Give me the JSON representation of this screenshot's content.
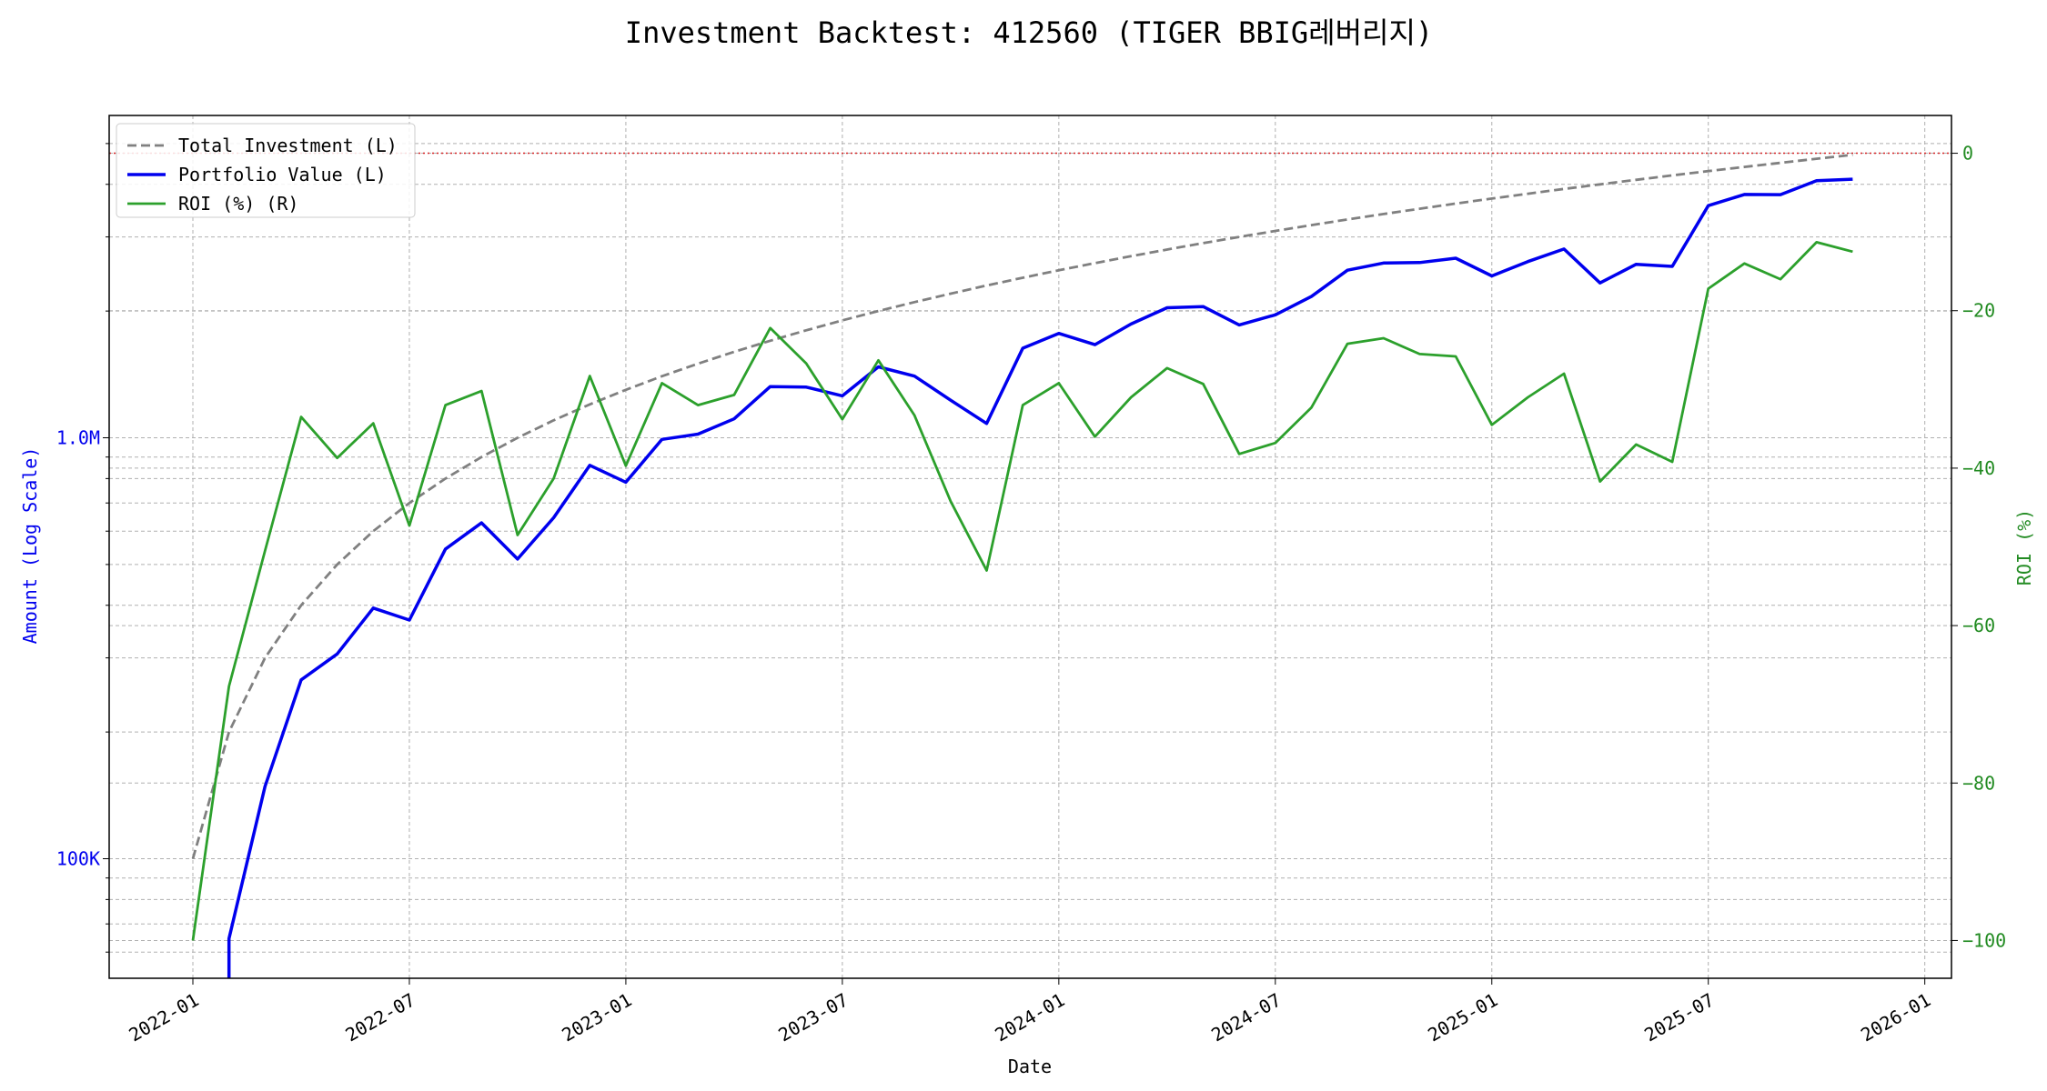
{
  "chart_data": {
    "type": "line",
    "title": "Investment Backtest: 412560 (TIGER BBIG레버리지)",
    "xlabel": "Date",
    "ylabel_left": "Amount (Log Scale)",
    "ylabel_right": "ROI (%)",
    "yscale_left": "log",
    "ylim_left": [
      52000,
      5830000
    ],
    "ylim_right": [
      -104.8,
      4.8
    ],
    "grid": true,
    "legend_placement": "top-left",
    "x_ticks": [
      "2022-01",
      "2022-07",
      "2023-01",
      "2023-07",
      "2024-01",
      "2024-07",
      "2025-01",
      "2025-07",
      "2026-01"
    ],
    "y_left_ticks": [
      {
        "value": 100000,
        "label": "100K"
      },
      {
        "value": 1000000,
        "label": "1.0M"
      }
    ],
    "y_right_ticks": [
      {
        "value": 0,
        "label": "0"
      },
      {
        "value": -20,
        "label": "−20"
      },
      {
        "value": -40,
        "label": "−40"
      },
      {
        "value": -60,
        "label": "−60"
      },
      {
        "value": -80,
        "label": "−80"
      },
      {
        "value": -100,
        "label": "−100"
      }
    ],
    "reference_line": {
      "axis": "right",
      "value": 0,
      "color": "#d62728"
    },
    "x": [
      "2022-01",
      "2022-02",
      "2022-03",
      "2022-04",
      "2022-05",
      "2022-06",
      "2022-07",
      "2022-08",
      "2022-09",
      "2022-10",
      "2022-11",
      "2022-12",
      "2023-01",
      "2023-02",
      "2023-03",
      "2023-04",
      "2023-05",
      "2023-06",
      "2023-07",
      "2023-08",
      "2023-09",
      "2023-10",
      "2023-11",
      "2023-12",
      "2024-01",
      "2024-02",
      "2024-03",
      "2024-04",
      "2024-05",
      "2024-06",
      "2024-07",
      "2024-08",
      "2024-09",
      "2024-10",
      "2024-11",
      "2024-12",
      "2025-01",
      "2025-02",
      "2025-03",
      "2025-04",
      "2025-05",
      "2025-06",
      "2025-07",
      "2025-08",
      "2025-09",
      "2025-10",
      "2025-11"
    ],
    "series": [
      {
        "name": "Total Investment (L)",
        "axis": "left",
        "color": "#808080",
        "style": "dashed",
        "values": [
          100000,
          200000,
          300000,
          400000,
          500000,
          600000,
          700000,
          800000,
          900000,
          1000000,
          1100000,
          1200000,
          1300000,
          1400000,
          1500000,
          1600000,
          1700000,
          1800000,
          1900000,
          2000000,
          2100000,
          2200000,
          2300000,
          2400000,
          2500000,
          2600000,
          2700000,
          2800000,
          2900000,
          3000000,
          3100000,
          3200000,
          3300000,
          3400000,
          3500000,
          3600000,
          3700000,
          3800000,
          3900000,
          4000000,
          4100000,
          4200000,
          4300000,
          4400000,
          4500000,
          4600000,
          4700000
        ]
      },
      {
        "name": "Portfolio Value (L)",
        "axis": "left",
        "color": "#0000ee",
        "style": "solid",
        "values": [
          0,
          64600,
          148500,
          266000,
          306500,
          394000,
          369000,
          544000,
          628000,
          515000,
          646000,
          860000,
          784000,
          991000,
          1020000,
          1109000,
          1323000,
          1319000,
          1258000,
          1474000,
          1401000,
          1228000,
          1081000,
          1632000,
          1770000,
          1664000,
          1863000,
          2036000,
          2050000,
          1854000,
          1959000,
          2166000,
          2501000,
          2601000,
          2608000,
          2671000,
          2424000,
          2622000,
          2808000,
          2332000,
          2583000,
          2554000,
          3560000,
          3784000,
          3780000,
          4080000,
          4113000
        ]
      },
      {
        "name": "ROI (%) (R)",
        "axis": "right",
        "color": "#2ca02c",
        "style": "solid",
        "values": [
          -100,
          -67.7,
          -50.5,
          -33.5,
          -38.7,
          -34.3,
          -47.3,
          -32,
          -30.2,
          -48.5,
          -41.3,
          -28.3,
          -39.7,
          -29.2,
          -32,
          -30.7,
          -22.2,
          -26.7,
          -33.8,
          -26.3,
          -33.3,
          -44.2,
          -53,
          -32,
          -29.2,
          -36,
          -31,
          -27.3,
          -29.3,
          -38.2,
          -36.8,
          -32.3,
          -24.2,
          -23.5,
          -25.5,
          -25.8,
          -34.5,
          -31,
          -28,
          -41.7,
          -37,
          -39.2,
          -17.2,
          -14,
          -16,
          -11.3,
          -12.5
        ]
      }
    ]
  }
}
